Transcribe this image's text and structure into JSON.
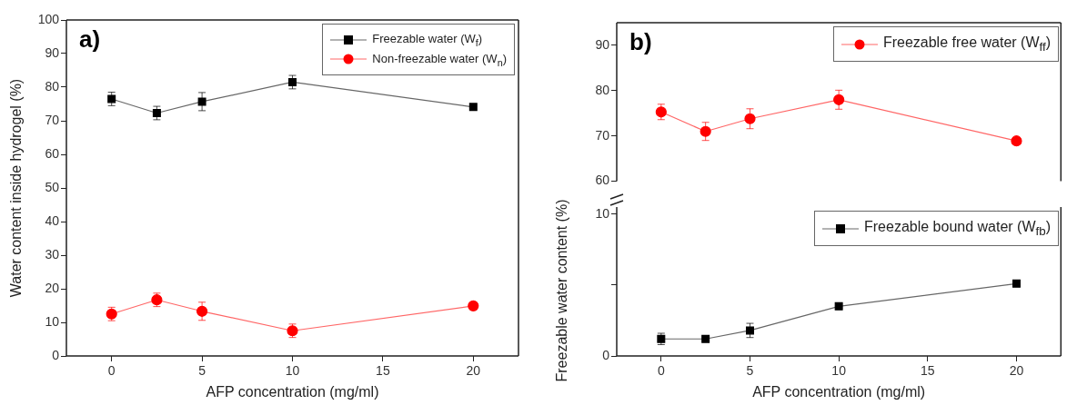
{
  "chart_data": [
    {
      "type": "line",
      "xlabel": "AFP concentration (mg/ml)",
      "ylabel": "Water content inside hydrogel (%)",
      "annotations": [
        "a)"
      ],
      "x": [
        0,
        2.5,
        5,
        10,
        20
      ],
      "xlim": [
        -2.5,
        22.5
      ],
      "xticks": [
        0,
        5,
        10,
        15,
        20
      ],
      "ylim": [
        0,
        100
      ],
      "yticks": [
        0,
        10,
        20,
        30,
        40,
        50,
        60,
        70,
        80,
        90,
        100
      ],
      "legend": "top right",
      "series": [
        {
          "name": "Freezable water (W$_{f}$)",
          "color": "#000000",
          "marker": "square",
          "values": [
            76.5,
            72.3,
            75.7,
            81.5,
            74.1
          ],
          "errors": [
            2,
            2,
            2.7,
            2,
            null
          ]
        },
        {
          "name": "Non-freezable water (W$_{n}$)",
          "color": "#ff0000",
          "marker": "circle",
          "values": [
            12.5,
            16.7,
            13.3,
            7.5,
            14.9
          ],
          "errors": [
            2,
            2,
            2.7,
            2,
            null
          ]
        }
      ]
    },
    {
      "type": "line",
      "annotations": [
        "b)"
      ],
      "x": [
        0,
        2.5,
        5,
        10,
        20
      ],
      "xlim": [
        -2.5,
        22.5
      ],
      "ylim": [
        60,
        95
      ],
      "yticks": [
        60,
        70,
        80,
        90
      ],
      "tick_labels": "y",
      "legend": "top right",
      "series": [
        {
          "name": "Freezable free water (W$_{ff}$)",
          "color": "#ff0000",
          "marker": "circle",
          "values": [
            75.3,
            71.0,
            73.8,
            78.0,
            68.9
          ],
          "errors": [
            1.7,
            2,
            2.2,
            2.1,
            null
          ]
        }
      ]
    },
    {
      "type": "line",
      "xlabel": "AFP concentration (mg/ml)",
      "ylabel": "Freezable water content (%)",
      "x": [
        0,
        2.5,
        5,
        10,
        20
      ],
      "xlim": [
        -2.5,
        22.5
      ],
      "xticks": [
        0,
        5,
        10,
        15,
        20
      ],
      "ylim": [
        0,
        10.5
      ],
      "yticks": [
        0,
        {
          "value": 5,
          "label": null
        },
        10
      ],
      "legend": "top right",
      "series": [
        {
          "name": "Freezable bound water (W$_{fb}$)",
          "color": "#000000",
          "marker": "square",
          "values": [
            1.2,
            1.2,
            1.8,
            3.5,
            5.1
          ],
          "errors": [
            0.4,
            null,
            0.5,
            null,
            null
          ]
        }
      ]
    }
  ]
}
